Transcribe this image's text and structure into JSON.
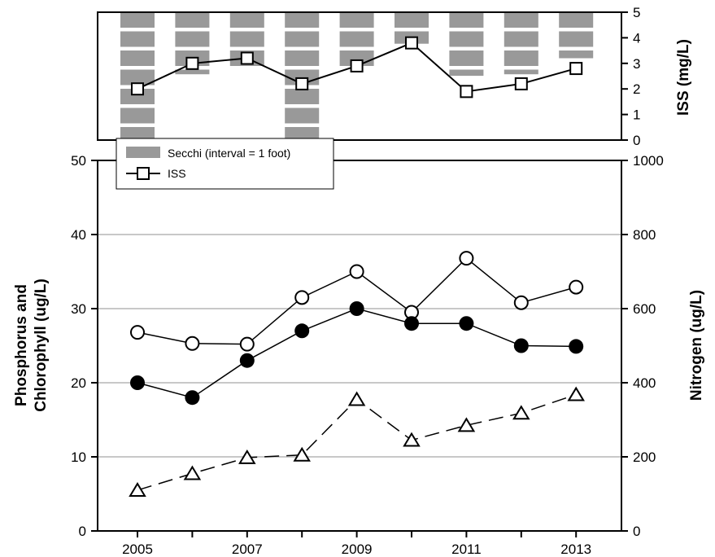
{
  "chart_data": [
    {
      "type": "bar+line",
      "panel": "top",
      "x": [
        2005,
        2006,
        2007,
        2008,
        2009,
        2010,
        2011,
        2012,
        2013
      ],
      "y_right_label": "ISS (mg/L)",
      "y_right_ticks": [
        "0",
        "1",
        "2",
        "3",
        "4",
        "5"
      ],
      "y_right_lim": [
        0,
        5
      ],
      "series": [
        {
          "name": "Secchi (interval = 1 foot)",
          "kind": "bar",
          "color": "#999999",
          "values_ft": [
            8.5,
            3.3,
            3.0,
            7.5,
            3.0,
            1.8,
            3.4,
            3.3,
            2.5
          ]
        },
        {
          "name": "ISS",
          "kind": "line",
          "marker": "open-square",
          "values": [
            2.0,
            3.0,
            3.2,
            2.2,
            2.9,
            3.8,
            1.9,
            2.2,
            2.8
          ]
        }
      ],
      "legend_position": "bottom-left"
    },
    {
      "type": "line",
      "panel": "bottom",
      "x": [
        2005,
        2006,
        2007,
        2008,
        2009,
        2010,
        2011,
        2012,
        2013
      ],
      "x_ticks": [
        "2005",
        "2007",
        "2009",
        "2011",
        "2013"
      ],
      "y_left_label_line1": "Phosphorus and",
      "y_left_label_line2": "Chlorophyll (ug/L)",
      "y_left_ticks": [
        "0",
        "10",
        "20",
        "30",
        "40",
        "50"
      ],
      "y_left_lim": [
        0,
        50
      ],
      "y_right_label": "Nitrogen (ug/L)",
      "y_right_ticks": [
        "0",
        "200",
        "400",
        "600",
        "800",
        "1000"
      ],
      "y_right_lim": [
        0,
        1000
      ],
      "grid": "horizontal",
      "series": [
        {
          "kind": "open-circle",
          "axis": "left",
          "values": [
            26.8,
            25.3,
            25.2,
            31.5,
            35.0,
            29.5,
            36.8,
            30.8,
            32.9
          ]
        },
        {
          "kind": "filled-circle",
          "axis": "left",
          "values": [
            20.0,
            18.0,
            23.0,
            27.0,
            30.0,
            28.0,
            28.0,
            25.0,
            24.9
          ]
        },
        {
          "kind": "open-triangle-dashed",
          "axis": "right",
          "values": [
            110,
            155,
            198,
            205,
            355,
            245,
            285,
            318,
            368
          ]
        }
      ]
    }
  ]
}
